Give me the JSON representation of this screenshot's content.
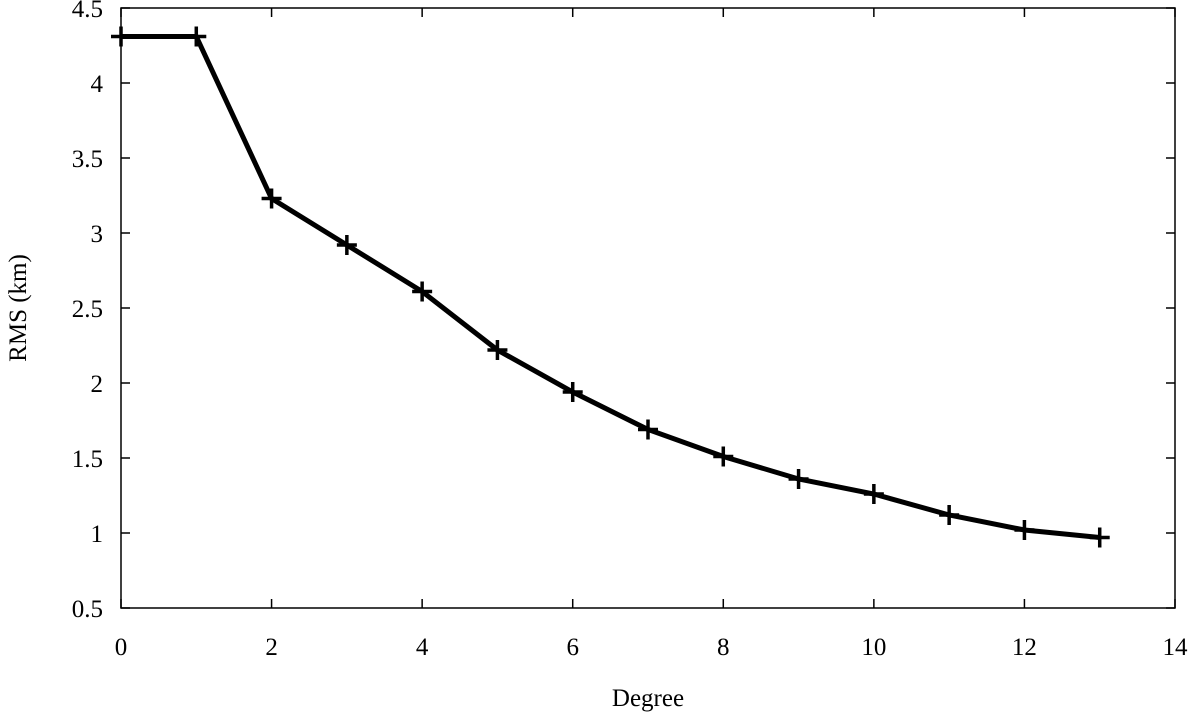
{
  "chart_data": {
    "type": "line",
    "xlabel": "Degree",
    "ylabel": "RMS (km)",
    "xlim": [
      0,
      14
    ],
    "ylim": [
      0.5,
      4.5
    ],
    "xticks": [
      0,
      2,
      4,
      6,
      8,
      10,
      12,
      14
    ],
    "yticks": [
      0.5,
      1,
      1.5,
      2,
      2.5,
      3,
      3.5,
      4,
      4.5
    ],
    "xtick_labels": [
      "0",
      "2",
      "4",
      "6",
      "8",
      "10",
      "12",
      "14"
    ],
    "ytick_labels": [
      "0.5",
      "1",
      "1.5",
      "2",
      "2.5",
      "3",
      "3.5",
      "4",
      "4.5"
    ],
    "grid": false,
    "series": [
      {
        "color": "#000000",
        "marker": "plus",
        "x": [
          0,
          1,
          2,
          3,
          4,
          5,
          6,
          7,
          8,
          9,
          10,
          11,
          12,
          13
        ],
        "y": [
          4.31,
          4.31,
          3.23,
          2.92,
          2.61,
          2.22,
          1.94,
          1.69,
          1.51,
          1.36,
          1.26,
          1.12,
          1.02,
          0.97
        ]
      }
    ]
  }
}
